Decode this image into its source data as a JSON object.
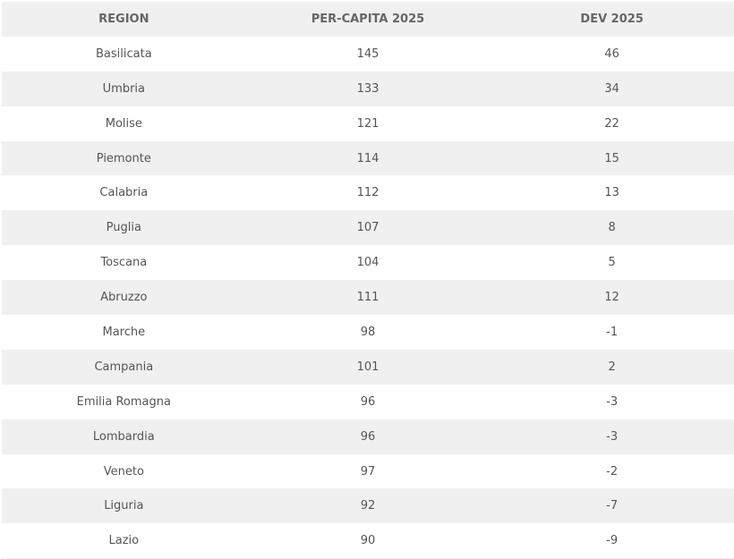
{
  "table": {
    "headers": [
      "REGION",
      "PER-CAPITA 2025",
      "DEV 2025"
    ],
    "rows": [
      [
        "Basilicata",
        "145",
        "46"
      ],
      [
        "Umbria",
        "133",
        "34"
      ],
      [
        "Molise",
        "121",
        "22"
      ],
      [
        "Piemonte",
        "114",
        "15"
      ],
      [
        "Calabria",
        "112",
        "13"
      ],
      [
        "Puglia",
        "107",
        "8"
      ],
      [
        "Toscana",
        "104",
        "5"
      ],
      [
        "Abruzzo",
        "111",
        "12"
      ],
      [
        "Marche",
        "98",
        "-1"
      ],
      [
        "Campania",
        "101",
        "2"
      ],
      [
        "Emilia Romagna",
        "96",
        "-3"
      ],
      [
        "Lombardia",
        "96",
        "-3"
      ],
      [
        "Veneto",
        "97",
        "-2"
      ],
      [
        "Liguria",
        "92",
        "-7"
      ],
      [
        "Lazio",
        "90",
        "-9"
      ]
    ]
  },
  "colors": {
    "header_bg": "#f0f0f0",
    "stripe_bg": "#f0f0f0",
    "text": "#555555"
  }
}
